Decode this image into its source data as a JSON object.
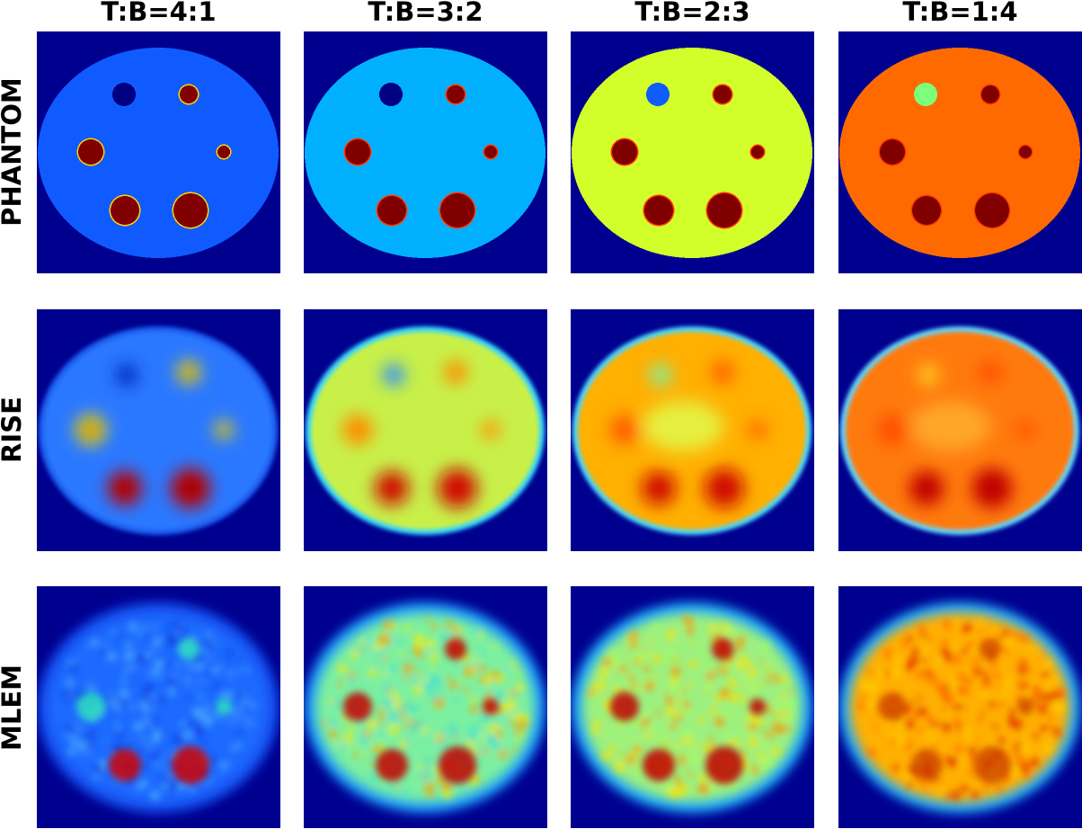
{
  "columns": [
    {
      "title": "T:B=4:1"
    },
    {
      "title": "T:B=3:2"
    },
    {
      "title": "T:B=2:3"
    },
    {
      "title": "T:B=1:4"
    }
  ],
  "rows": [
    {
      "title": "PHANTOM"
    },
    {
      "title": "RISE"
    },
    {
      "title": "MLEM"
    }
  ],
  "colors": {
    "frame_background": "#00008f",
    "phantom_background": [
      "#0f5bff",
      "#00b0ff",
      "#d2ff2a",
      "#ff6a00"
    ],
    "phantom_hot_spot": "#800000",
    "phantom_cold_spot": [
      "#000080",
      "#000080",
      "#0f5bff",
      "#7dff7a"
    ]
  }
}
